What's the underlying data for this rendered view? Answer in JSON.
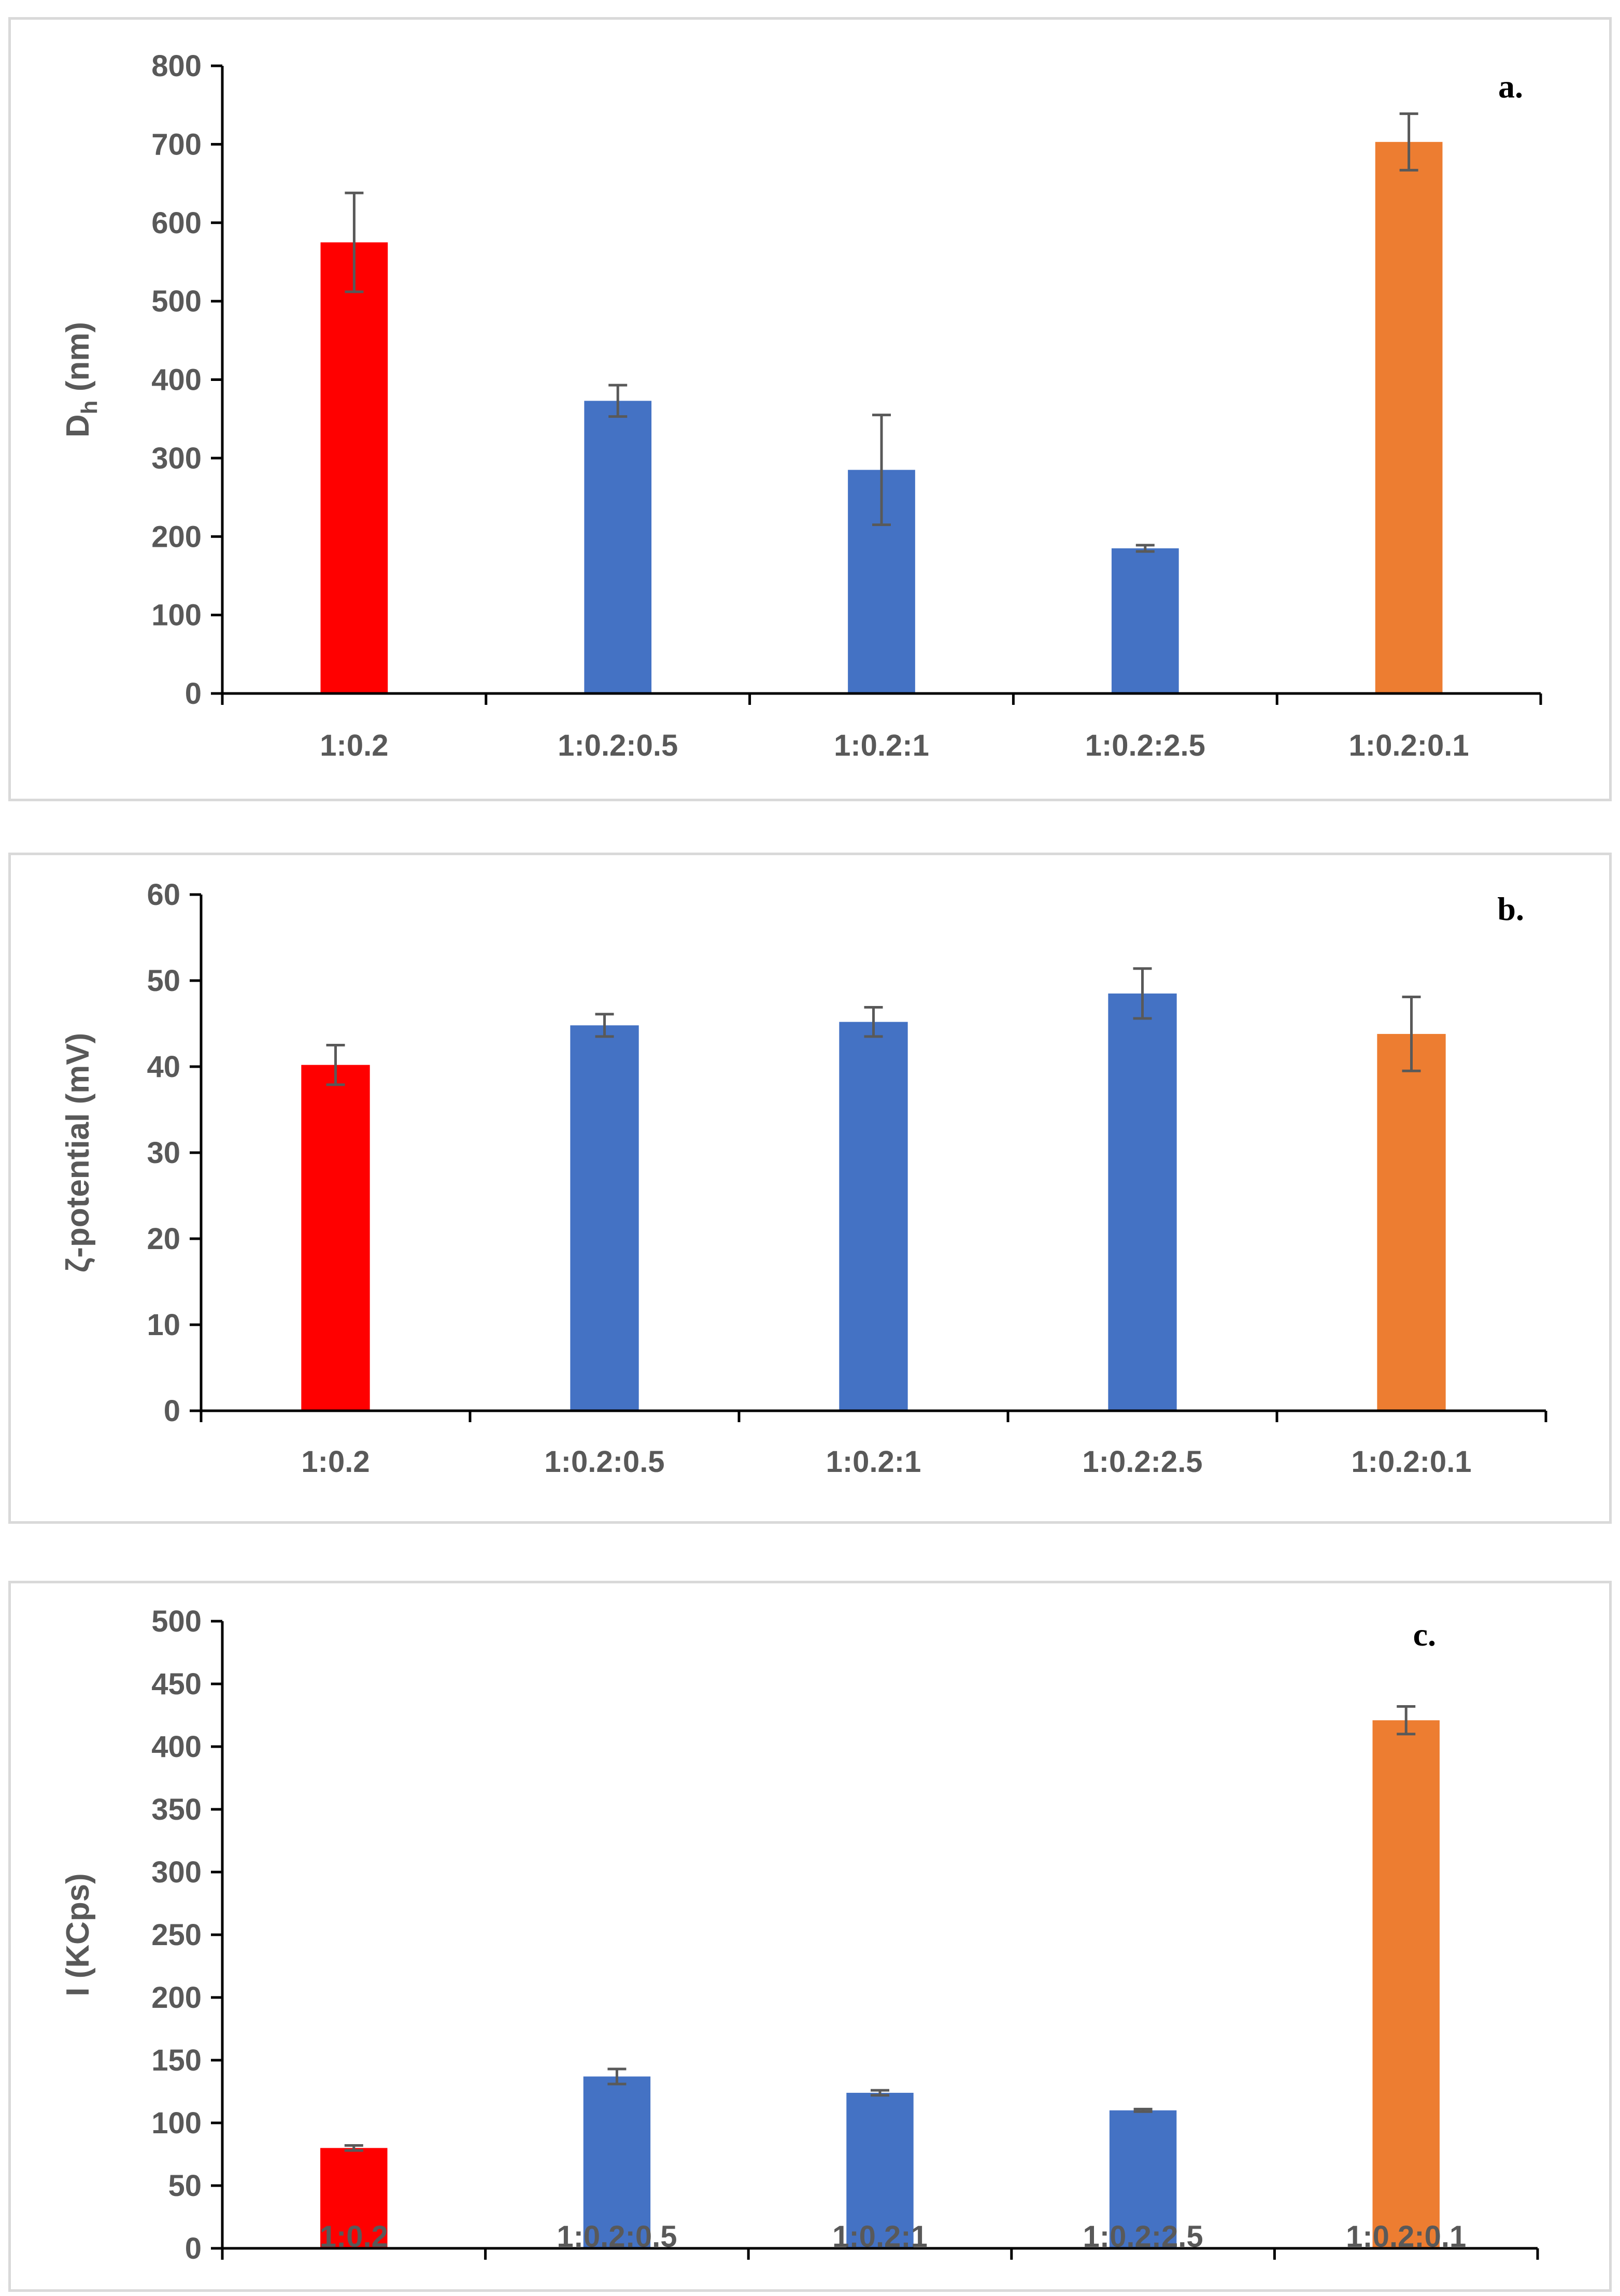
{
  "colors": {
    "control": "#ff0000",
    "series": "#4472c4",
    "highlight": "#ed7d31",
    "axis": "#000000",
    "text": "#595959",
    "error_bar": "#595959"
  },
  "chart_data": [
    {
      "type": "bar",
      "panel_label": "a.",
      "ylabel_main": "D",
      "ylabel_sub": "h",
      "ylabel_rest": " (nm)",
      "xlabel": "",
      "categories": [
        "1:0.2",
        "1:0.2:0.5",
        "1:0.2:1",
        "1:0.2:2.5",
        "1:0.2:0.1"
      ],
      "values": [
        575,
        373,
        285,
        185,
        703
      ],
      "errors": [
        63,
        20,
        70,
        4,
        36
      ],
      "bar_colors": [
        "#ff0000",
        "#4472c4",
        "#4472c4",
        "#4472c4",
        "#ed7d31"
      ],
      "ylim": [
        0,
        800
      ],
      "yticks": [
        0,
        100,
        200,
        300,
        400,
        500,
        600,
        700,
        800
      ],
      "ytick_labels": [
        "0",
        "100",
        "200",
        "300",
        "400",
        "500",
        "600",
        "700",
        "800"
      ]
    },
    {
      "type": "bar",
      "panel_label": "b.",
      "ylabel_main": "ζ-potential (mV)",
      "ylabel_sub": "",
      "ylabel_rest": "",
      "xlabel": "",
      "categories": [
        "1:0.2",
        "1:0.2:0.5",
        "1:0.2:1",
        "1:0.2:2.5",
        "1:0.2:0.1"
      ],
      "values": [
        40.2,
        44.8,
        45.2,
        48.5,
        43.8
      ],
      "errors": [
        2.3,
        1.3,
        1.7,
        2.9,
        4.3
      ],
      "bar_colors": [
        "#ff0000",
        "#4472c4",
        "#4472c4",
        "#4472c4",
        "#ed7d31"
      ],
      "ylim": [
        0,
        60
      ],
      "yticks": [
        0,
        10,
        20,
        30,
        40,
        50,
        60
      ],
      "ytick_labels": [
        "0",
        "10",
        "20",
        "30",
        "40",
        "50",
        "60"
      ]
    },
    {
      "type": "bar",
      "panel_label": "c.",
      "ylabel_main": "I (KCps)",
      "ylabel_sub": "",
      "ylabel_rest": "",
      "xlabel": "",
      "categories": [
        "1:0.2",
        "1:0.2:0.5",
        "1:0.2:1",
        "1:0.2:2.5",
        "1:0.2:0.1"
      ],
      "values": [
        80,
        137,
        124,
        110,
        421
      ],
      "errors": [
        2,
        6,
        2,
        1,
        11
      ],
      "bar_colors": [
        "#ff0000",
        "#4472c4",
        "#4472c4",
        "#4472c4",
        "#ed7d31"
      ],
      "ylim": [
        0,
        500
      ],
      "yticks": [
        0,
        50,
        100,
        150,
        200,
        250,
        300,
        350,
        400,
        450,
        500
      ],
      "ytick_labels": [
        "0",
        "50",
        "100",
        "150",
        "200",
        "250",
        "300",
        "350",
        "400",
        "450",
        "500"
      ]
    }
  ]
}
